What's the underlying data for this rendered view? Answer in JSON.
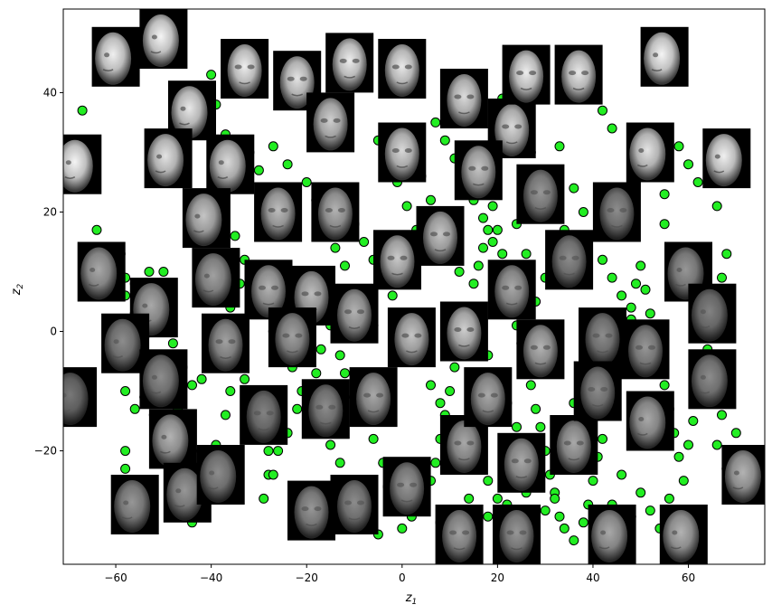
{
  "chart_data": {
    "type": "scatter",
    "title": "",
    "xlabel": {
      "base": "z",
      "sub": "1"
    },
    "ylabel": {
      "base": "z",
      "sub": "2"
    },
    "xlim": [
      -71,
      76
    ],
    "ylim": [
      -39,
      54
    ],
    "xticks": [
      -60,
      -40,
      -20,
      0,
      20,
      40,
      60
    ],
    "yticks": [
      -20,
      0,
      20,
      40
    ],
    "grid": false,
    "marker": {
      "color": "#22ee22",
      "edge": "#000000"
    },
    "points": [
      [
        -67,
        37
      ],
      [
        -64,
        17
      ],
      [
        -59,
        13
      ],
      [
        -58,
        9
      ],
      [
        -56,
        8
      ],
      [
        -53,
        10
      ],
      [
        -50,
        10
      ],
      [
        -58,
        -10
      ],
      [
        -56,
        -13
      ],
      [
        -54,
        -11
      ],
      [
        -52,
        -14
      ],
      [
        -50,
        -16
      ],
      [
        -58,
        -20
      ],
      [
        -58,
        -23
      ],
      [
        -57,
        -26
      ],
      [
        -56,
        -29
      ],
      [
        -54,
        -27
      ],
      [
        -47,
        -13
      ],
      [
        -45,
        -15
      ],
      [
        -46,
        -18
      ],
      [
        -44,
        -20
      ],
      [
        -46,
        -22
      ],
      [
        -47,
        -25
      ],
      [
        -48,
        -29
      ],
      [
        -46,
        -31
      ],
      [
        -44,
        -32
      ],
      [
        -43,
        -27
      ],
      [
        -41,
        -23
      ],
      [
        -39,
        -19
      ],
      [
        -37,
        -14
      ],
      [
        -36,
        -10
      ],
      [
        -33,
        -8
      ],
      [
        -31,
        -11
      ],
      [
        -30,
        -15
      ],
      [
        -28,
        -20
      ],
      [
        -28,
        -24
      ],
      [
        -29,
        -28
      ],
      [
        -27,
        -24
      ],
      [
        -26,
        -20
      ],
      [
        -24,
        -17
      ],
      [
        -22,
        -13
      ],
      [
        -20,
        -10
      ],
      [
        -18,
        -7
      ],
      [
        -17,
        -3
      ],
      [
        -15,
        1
      ],
      [
        -13,
        -4
      ],
      [
        -12,
        -7
      ],
      [
        -10,
        -11
      ],
      [
        -8,
        -15
      ],
      [
        -6,
        -18
      ],
      [
        -4,
        -22
      ],
      [
        -3,
        -26
      ],
      [
        -2,
        -30
      ],
      [
        0,
        -33
      ],
      [
        2,
        -31
      ],
      [
        4,
        -28
      ],
      [
        6,
        -25
      ],
      [
        7,
        -22
      ],
      [
        8,
        -18
      ],
      [
        9,
        -14
      ],
      [
        10,
        -10
      ],
      [
        11,
        -6
      ],
      [
        12,
        -3
      ],
      [
        13,
        1
      ],
      [
        14,
        4
      ],
      [
        15,
        8
      ],
      [
        16,
        11
      ],
      [
        17,
        14
      ],
      [
        18,
        17
      ],
      [
        19,
        21
      ],
      [
        20,
        17
      ],
      [
        21,
        13
      ],
      [
        22,
        9
      ],
      [
        23,
        5
      ],
      [
        24,
        1
      ],
      [
        25,
        -2
      ],
      [
        26,
        -6
      ],
      [
        27,
        -9
      ],
      [
        28,
        -13
      ],
      [
        29,
        -16
      ],
      [
        30,
        -20
      ],
      [
        31,
        -24
      ],
      [
        32,
        -27
      ],
      [
        33,
        -31
      ],
      [
        34,
        -33
      ],
      [
        36,
        -35
      ],
      [
        38,
        -32
      ],
      [
        39,
        -29
      ],
      [
        40,
        -25
      ],
      [
        41,
        -21
      ],
      [
        42,
        -18
      ],
      [
        43,
        -14
      ],
      [
        44,
        -10
      ],
      [
        45,
        -6
      ],
      [
        46,
        -3
      ],
      [
        47,
        1
      ],
      [
        48,
        4
      ],
      [
        49,
        8
      ],
      [
        50,
        11
      ],
      [
        51,
        7
      ],
      [
        52,
        3
      ],
      [
        53,
        -1
      ],
      [
        54,
        -5
      ],
      [
        55,
        -9
      ],
      [
        56,
        -13
      ],
      [
        57,
        -17
      ],
      [
        58,
        -21
      ],
      [
        59,
        -25
      ],
      [
        60,
        -19
      ],
      [
        61,
        -15
      ],
      [
        62,
        -11
      ],
      [
        63,
        -7
      ],
      [
        64,
        -3
      ],
      [
        65,
        1
      ],
      [
        66,
        5
      ],
      [
        67,
        9
      ],
      [
        68,
        13
      ],
      [
        66,
        -19
      ],
      [
        68,
        -23
      ],
      [
        70,
        -17
      ],
      [
        -40,
        43
      ],
      [
        -39,
        38
      ],
      [
        -37,
        33
      ],
      [
        -32,
        30
      ],
      [
        -30,
        27
      ],
      [
        -27,
        31
      ],
      [
        -24,
        28
      ],
      [
        -20,
        25
      ],
      [
        -18,
        22
      ],
      [
        -16,
        18
      ],
      [
        -14,
        14
      ],
      [
        -12,
        11
      ],
      [
        -10,
        7
      ],
      [
        -8,
        4
      ],
      [
        -6,
        1
      ],
      [
        -5,
        32
      ],
      [
        -3,
        29
      ],
      [
        -1,
        25
      ],
      [
        1,
        21
      ],
      [
        3,
        17
      ],
      [
        5,
        14
      ],
      [
        7,
        35
      ],
      [
        9,
        32
      ],
      [
        11,
        29
      ],
      [
        13,
        26
      ],
      [
        15,
        22
      ],
      [
        17,
        19
      ],
      [
        19,
        15
      ],
      [
        21,
        39
      ],
      [
        23,
        36
      ],
      [
        25,
        33
      ],
      [
        27,
        30
      ],
      [
        29,
        27
      ],
      [
        33,
        31
      ],
      [
        36,
        24
      ],
      [
        38,
        20
      ],
      [
        40,
        16
      ],
      [
        42,
        12
      ],
      [
        44,
        9
      ],
      [
        46,
        6
      ],
      [
        48,
        2
      ],
      [
        37,
        45
      ],
      [
        40,
        43
      ],
      [
        42,
        37
      ],
      [
        44,
        34
      ],
      [
        58,
        31
      ],
      [
        62,
        25
      ],
      [
        66,
        21
      ],
      [
        60,
        28
      ],
      [
        55,
        23
      ],
      [
        -35,
        16
      ],
      [
        -33,
        12
      ],
      [
        -31,
        8
      ],
      [
        -29,
        4
      ],
      [
        -27,
        0
      ],
      [
        -25,
        -3
      ],
      [
        -23,
        -6
      ],
      [
        -21,
        -10
      ],
      [
        -19,
        -13
      ],
      [
        -17,
        -16
      ],
      [
        -15,
        -19
      ],
      [
        -13,
        -22
      ],
      [
        -11,
        -25
      ],
      [
        -9,
        -28
      ],
      [
        -7,
        -31
      ],
      [
        -5,
        -34
      ],
      [
        -42,
        -8
      ],
      [
        -40,
        -4
      ],
      [
        -38,
        0
      ],
      [
        -36,
        4
      ],
      [
        -34,
        8
      ],
      [
        -50,
        2
      ],
      [
        -48,
        -2
      ],
      [
        -46,
        -6
      ],
      [
        -44,
        -9
      ],
      [
        -52,
        -4
      ],
      [
        -54,
        -1
      ],
      [
        -56,
        3
      ],
      [
        -58,
        6
      ],
      [
        -60,
        -2
      ],
      [
        4,
        -5
      ],
      [
        6,
        -9
      ],
      [
        8,
        -12
      ],
      [
        2,
        -1
      ],
      [
        0,
        3
      ],
      [
        -2,
        6
      ],
      [
        -4,
        9
      ],
      [
        -6,
        12
      ],
      [
        -8,
        15
      ],
      [
        -10,
        18
      ],
      [
        30,
        -30
      ],
      [
        32,
        -28
      ],
      [
        26,
        -27
      ],
      [
        22,
        -29
      ],
      [
        18,
        -31
      ],
      [
        14,
        -28
      ],
      [
        10,
        -30
      ],
      [
        8,
        -32
      ],
      [
        44,
        -29
      ],
      [
        46,
        -24
      ],
      [
        50,
        -27
      ],
      [
        52,
        -30
      ],
      [
        54,
        -33
      ],
      [
        56,
        -28
      ],
      [
        48,
        -31
      ],
      [
        36,
        -12
      ],
      [
        34,
        -16
      ],
      [
        38,
        -9
      ],
      [
        40,
        -5
      ],
      [
        42,
        -2
      ],
      [
        12,
        10
      ],
      [
        10,
        14
      ],
      [
        8,
        18
      ],
      [
        6,
        22
      ],
      [
        4,
        26
      ],
      [
        2,
        30
      ],
      [
        16,
        -22
      ],
      [
        18,
        -25
      ],
      [
        20,
        -28
      ],
      [
        22,
        -24
      ],
      [
        55,
        18
      ],
      [
        57,
        14
      ],
      [
        59,
        10
      ],
      [
        61,
        6
      ],
      [
        63,
        2
      ],
      [
        64,
        -7
      ],
      [
        65,
        -11
      ],
      [
        67,
        -14
      ],
      [
        69,
        -21
      ],
      [
        71,
        -24
      ],
      [
        28,
        5
      ],
      [
        30,
        9
      ],
      [
        32,
        13
      ],
      [
        34,
        17
      ],
      [
        26,
        13
      ],
      [
        24,
        18
      ],
      [
        24,
        -16
      ],
      [
        22,
        -12
      ],
      [
        20,
        -8
      ],
      [
        18,
        -4
      ]
    ],
    "face_images": [
      [
        -60,
        46,
        "L",
        0.92
      ],
      [
        -50,
        49,
        "L",
        0.95
      ],
      [
        -33,
        44,
        "F",
        0.9
      ],
      [
        -22,
        42,
        "F",
        0.85
      ],
      [
        -15,
        35,
        "F",
        0.75
      ],
      [
        -11,
        45,
        "F",
        0.9
      ],
      [
        0,
        44,
        "F",
        0.88
      ],
      [
        13,
        39,
        "F",
        0.82
      ],
      [
        23,
        34,
        "F",
        0.8
      ],
      [
        26,
        43,
        "F",
        0.9
      ],
      [
        37,
        43,
        "F",
        0.88
      ],
      [
        55,
        46,
        "L",
        0.95
      ],
      [
        -44,
        37,
        "L",
        0.88
      ],
      [
        -68,
        28,
        "L",
        0.95
      ],
      [
        -49,
        29,
        "L",
        0.85
      ],
      [
        -36,
        28,
        "L",
        0.8
      ],
      [
        0,
        30,
        "F",
        0.8
      ],
      [
        16,
        27,
        "F",
        0.7
      ],
      [
        29,
        23,
        "F",
        0.45
      ],
      [
        52,
        30,
        "L",
        0.85
      ],
      [
        68,
        29,
        "L",
        0.92
      ],
      [
        -41,
        19,
        "L",
        0.7
      ],
      [
        -26,
        20,
        "F",
        0.65
      ],
      [
        -14,
        20,
        "F",
        0.6
      ],
      [
        8,
        16,
        "F",
        0.7
      ],
      [
        -1,
        12,
        "F",
        0.72
      ],
      [
        23,
        7,
        "F",
        0.55
      ],
      [
        35,
        12,
        "F",
        0.4
      ],
      [
        42,
        -1,
        "F",
        0.4
      ],
      [
        51,
        -3,
        "F",
        0.45
      ],
      [
        45,
        20,
        "F",
        0.4
      ],
      [
        60,
        10,
        "L",
        0.45
      ],
      [
        65,
        3,
        "L",
        0.35
      ],
      [
        -63,
        10,
        "L",
        0.55
      ],
      [
        -52,
        4,
        "L",
        0.55
      ],
      [
        -39,
        9,
        "L",
        0.5
      ],
      [
        -28,
        7,
        "F",
        0.6
      ],
      [
        -19,
        6,
        "F",
        0.65
      ],
      [
        -10,
        3,
        "F",
        0.6
      ],
      [
        -23,
        -1,
        "F",
        0.5
      ],
      [
        -37,
        -2,
        "F",
        0.5
      ],
      [
        -58,
        -2,
        "L",
        0.4
      ],
      [
        -50,
        -8,
        "L",
        0.4
      ],
      [
        -69,
        -11,
        "L",
        0.3
      ],
      [
        2,
        -1,
        "F",
        0.7
      ],
      [
        13,
        0,
        "F",
        0.75
      ],
      [
        -6,
        -11,
        "F",
        0.55
      ],
      [
        -16,
        -13,
        "F",
        0.4
      ],
      [
        -29,
        -14,
        "F",
        0.35
      ],
      [
        -48,
        -18,
        "L",
        0.6
      ],
      [
        -56,
        -29,
        "L",
        0.45
      ],
      [
        -45,
        -27,
        "L",
        0.45
      ],
      [
        -38,
        -24,
        "L",
        0.4
      ],
      [
        -19,
        -30,
        "F",
        0.45
      ],
      [
        -10,
        -29,
        "F",
        0.4
      ],
      [
        1,
        -26,
        "F",
        0.45
      ],
      [
        13,
        -19,
        "F",
        0.55
      ],
      [
        18,
        -11,
        "F",
        0.55
      ],
      [
        25,
        -22,
        "F",
        0.55
      ],
      [
        29,
        -3,
        "F",
        0.6
      ],
      [
        36,
        -19,
        "F",
        0.55
      ],
      [
        41,
        -10,
        "F",
        0.4
      ],
      [
        52,
        -15,
        "L",
        0.55
      ],
      [
        65,
        -8,
        "L",
        0.4
      ],
      [
        72,
        -24,
        "L",
        0.6
      ],
      [
        59,
        -34,
        "L",
        0.6
      ],
      [
        44,
        -34,
        "L",
        0.55
      ],
      [
        24,
        -34,
        "F",
        0.45
      ],
      [
        12,
        -34,
        "F",
        0.5
      ]
    ]
  }
}
